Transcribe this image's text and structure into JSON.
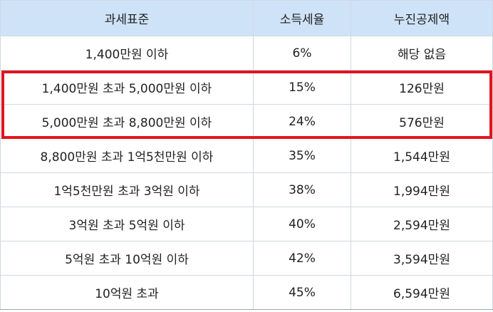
{
  "table": {
    "header": [
      "과세표준",
      "소득세율",
      "누진공제액"
    ],
    "rows": [
      [
        "1,400만원 이하",
        "6%",
        "해당 없음"
      ],
      [
        "1,400만원 초과 5,000만원 이하",
        "15%",
        "126만원"
      ],
      [
        "5,000만원 초과 8,800만원 이하",
        "24%",
        "576만원"
      ],
      [
        "8,800만원 초과 1억5천만원 이하",
        "35%",
        "1,544만원"
      ],
      [
        "1억5천만원 초과 3억원 이하",
        "38%",
        "1,994만원"
      ],
      [
        "3억원 초과 5억원 이하",
        "40%",
        "2,594만원"
      ],
      [
        "5억원 초과 10억원 이하",
        "42%",
        "3,594만원"
      ],
      [
        "10억원 초과",
        "45%",
        "6,594만원"
      ]
    ]
  }
}
